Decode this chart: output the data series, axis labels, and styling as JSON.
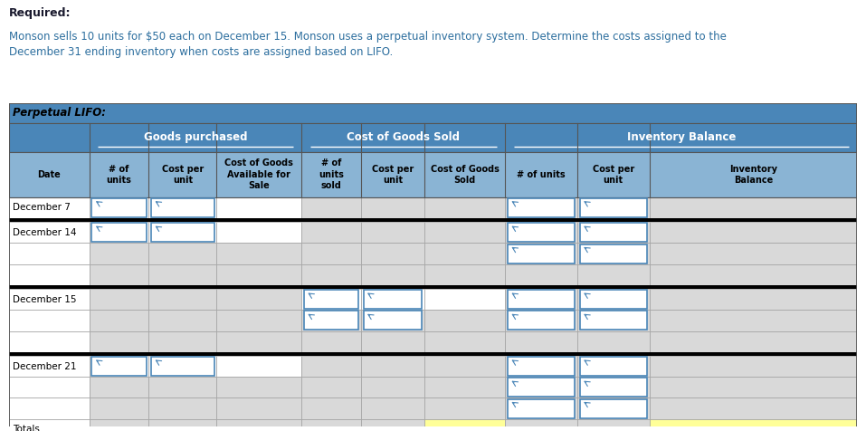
{
  "title_required": "Required:",
  "title_body": "Monson sells 10 units for $50 each on December 15. Monson uses a perpetual inventory system. Determine the costs assigned to the\nDecember 31 ending inventory when costs are assigned based on LIFO.",
  "section_title": "Perpetual LIFO:",
  "col_headers_top": [
    "",
    "Goods purchased",
    "",
    "",
    "Cost of Goods Sold",
    "",
    "Inventory Balance",
    "",
    ""
  ],
  "col_headers_sub": [
    "Date",
    "# of\nunits",
    "Cost per\nunit",
    "Cost of Goods\nAvailable for\nSale",
    "# of\nunits\nsold",
    "Cost per\nunit",
    "Cost of Goods\nSold",
    "# of units",
    "Cost per\nunit",
    "Inventory\nBalance"
  ],
  "row_labels": [
    "December 7",
    "December 14",
    "December 15",
    "December 21",
    "Totals"
  ],
  "color_header_dark": "#4a86b8",
  "color_header_light": "#8ab4d4",
  "color_cell_white": "#ffffff",
  "color_cell_gray": "#d9d9d9",
  "color_cell_yellow": "#ffff99",
  "color_cell_blue_border": "#4a86b8",
  "color_black_bar": "#000000",
  "color_text_required": "#c0392b",
  "color_text_body": "#2c6e9e",
  "color_text_dark": "#1a1a2e",
  "color_section_title": "#2c6e9e",
  "fig_width": 9.57,
  "fig_height": 4.76
}
